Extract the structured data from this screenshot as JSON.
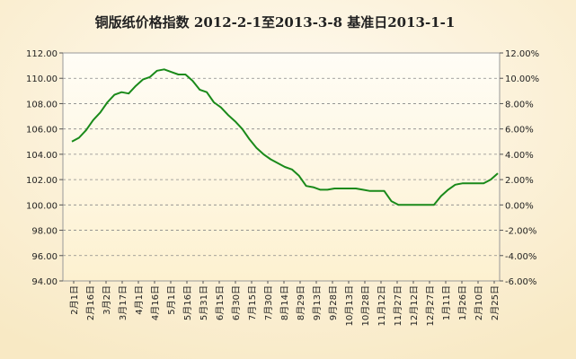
{
  "chart_data": {
    "type": "line",
    "title": "铜版纸价格指数 2012-2-1至2013-3-8 基准日2013-1-1",
    "xlabel": "",
    "ylabel": "",
    "y_ticks": [
      "94.00",
      "96.00",
      "98.00",
      "100.00",
      "102.00",
      "104.00",
      "106.00",
      "108.00",
      "110.00",
      "112.00"
    ],
    "ylim": [
      94,
      112
    ],
    "y2_ticks": [
      "-6.00%",
      "-4.00%",
      "-2.00%",
      "0.00%",
      "2.00%",
      "4.00%",
      "6.00%",
      "8.00%",
      "10.00%",
      "12.00%"
    ],
    "y2lim": [
      -6,
      12
    ],
    "grid": true,
    "legend": "none",
    "x_labels": [
      "2月1日",
      "2月16日",
      "3月2日",
      "3月17日",
      "4月1日",
      "4月16日",
      "5月1日",
      "5月16日",
      "5月31日",
      "6月15日",
      "6月30日",
      "7月15日",
      "7月30日",
      "8月14日",
      "8月29日",
      "9月13日",
      "9月28日",
      "10月13日",
      "10月28日",
      "11月12日",
      "11月27日",
      "12月12日",
      "12月27日",
      "1月11日",
      "1月26日",
      "2月10日",
      "2月25日"
    ],
    "line_color": "#1a8a1a",
    "series": [
      {
        "values": [
          105.0,
          105.3,
          105.9,
          106.7,
          107.3,
          108.1,
          108.7,
          108.9,
          108.8,
          109.4,
          109.9,
          110.1,
          110.6,
          110.7,
          110.5,
          110.3,
          110.3,
          109.8,
          109.1,
          108.9,
          108.1,
          107.7,
          107.1,
          106.6,
          106.0,
          105.2,
          104.5,
          104.0,
          103.6,
          103.3,
          103.0,
          102.8,
          102.3,
          101.5,
          101.4,
          101.2,
          101.2,
          101.3,
          101.3,
          101.3,
          101.3,
          101.2,
          101.1,
          101.1,
          101.1,
          100.3,
          100.0,
          100.0,
          100.0,
          100.0,
          100.0,
          100.0,
          100.7,
          101.2,
          101.6,
          101.7,
          101.7,
          101.7,
          101.7,
          102.0,
          102.5
        ]
      }
    ]
  }
}
